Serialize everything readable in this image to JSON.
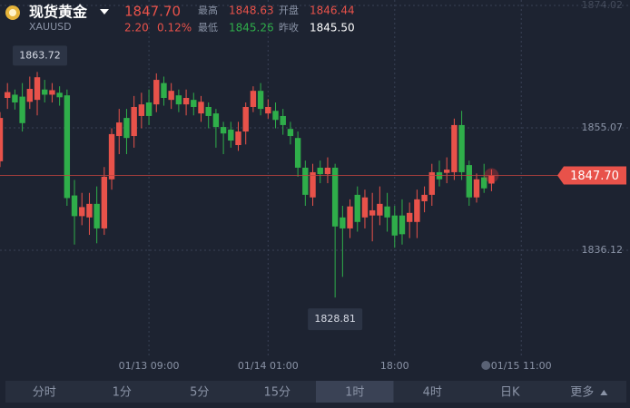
{
  "header": {
    "title": "现货黄金",
    "symbol": "XAUUSD",
    "price": "1847.70",
    "change": "2.20",
    "change_pct": "0.12%",
    "stats": [
      {
        "label": "最高",
        "value": "1848.63"
      },
      {
        "label": "开盘",
        "value": "1846.44"
      },
      {
        "label": "最低",
        "value": "1845.26"
      },
      {
        "label": "昨收",
        "value": "1845.50"
      }
    ]
  },
  "chart_data": {
    "type": "candlestick",
    "up_color": "#e8524a",
    "down_color": "#2fae4a",
    "open": [
      1849.9,
      1859.7,
      1860.2,
      1859.9,
      1859.1,
      1859.4,
      1861.0,
      1860.2,
      1860.5,
      1860.1,
      1844.6,
      1841.4,
      1841.2,
      1843.3,
      1839.5,
      1847.1,
      1853.8,
      1856.6,
      1853.8,
      1856.9,
      1859.0,
      1858.7,
      1862.0,
      1859.4,
      1860.1,
      1858.7,
      1859.4,
      1857.3,
      1858.3,
      1857.3,
      1855.2,
      1854.8,
      1852.4,
      1854.5,
      1858.3,
      1860.8,
      1857.3,
      1857.7,
      1856.9,
      1854.9,
      1853.5,
      1848.9,
      1844.3,
      1848.9,
      1847.9,
      1848.9,
      1841.2,
      1839.5,
      1844.7,
      1841.2,
      1841.5,
      1841.5,
      1842.9,
      1841.5,
      1841.5,
      1840.5,
      1840.5,
      1843.7,
      1844.7,
      1848.2,
      1848.1,
      1848.2,
      1855.5,
      1849.3,
      1844.3,
      1847.4,
      1846.44
    ],
    "high": [
      1857.5,
      1862.0,
      1861.0,
      1862.0,
      1863.0,
      1863.72,
      1862.5,
      1862.0,
      1861.5,
      1861.0,
      1847.0,
      1845.0,
      1845.0,
      1846.0,
      1849.0,
      1855.0,
      1858.0,
      1858.0,
      1860.0,
      1860.5,
      1861.0,
      1863.5,
      1863.0,
      1862.0,
      1861.0,
      1861.0,
      1860.5,
      1860.0,
      1859.0,
      1858.0,
      1856.0,
      1856.0,
      1856.0,
      1859.0,
      1861.5,
      1862.0,
      1859.5,
      1859.0,
      1858.0,
      1856.0,
      1854.5,
      1850.0,
      1849.5,
      1850.0,
      1850.5,
      1849.5,
      1843.0,
      1844.0,
      1846.0,
      1845.5,
      1845.0,
      1846.0,
      1845.0,
      1843.0,
      1844.0,
      1843.5,
      1845.5,
      1846.0,
      1849.5,
      1850.0,
      1850.5,
      1856.5,
      1857.7,
      1850.0,
      1848.0,
      1849.5,
      1848.63
    ],
    "low": [
      1849.0,
      1858.0,
      1857.9,
      1854.5,
      1858.0,
      1857.0,
      1859.0,
      1859.0,
      1858.5,
      1843.0,
      1837.0,
      1840.0,
      1838.5,
      1837.2,
      1838.5,
      1845.5,
      1851.0,
      1851.0,
      1852.0,
      1855.0,
      1855.5,
      1857.5,
      1858.5,
      1858.0,
      1857.5,
      1857.0,
      1857.0,
      1856.0,
      1855.0,
      1852.0,
      1851.0,
      1852.0,
      1851.5,
      1852.5,
      1857.5,
      1857.0,
      1856.5,
      1855.0,
      1854.0,
      1852.5,
      1847.5,
      1843.0,
      1843.0,
      1846.5,
      1846.5,
      1828.81,
      1832.0,
      1838.0,
      1839.0,
      1839.5,
      1837.5,
      1840.0,
      1839.0,
      1836.5,
      1837.0,
      1838.0,
      1838.0,
      1842.0,
      1843.0,
      1846.0,
      1846.5,
      1847.0,
      1847.0,
      1843.0,
      1843.5,
      1845.0,
      1845.26
    ],
    "close": [
      1856.6,
      1860.6,
      1859.0,
      1855.8,
      1861.1,
      1862.9,
      1860.2,
      1860.9,
      1859.8,
      1844.2,
      1841.4,
      1842.8,
      1843.3,
      1839.5,
      1847.5,
      1854.1,
      1855.9,
      1853.5,
      1858.3,
      1858.7,
      1856.9,
      1862.5,
      1859.7,
      1860.8,
      1858.7,
      1859.7,
      1858.3,
      1859.1,
      1856.9,
      1855.2,
      1854.2,
      1853.1,
      1854.5,
      1858.3,
      1860.8,
      1858.0,
      1858.3,
      1856.3,
      1855.5,
      1853.8,
      1848.9,
      1844.7,
      1848.2,
      1847.9,
      1848.9,
      1839.8,
      1839.5,
      1842.9,
      1840.5,
      1844.3,
      1842.3,
      1843.3,
      1841.2,
      1838.4,
      1838.6,
      1841.9,
      1844.0,
      1844.7,
      1848.2,
      1847.1,
      1848.6,
      1855.5,
      1848.2,
      1844.3,
      1847.1,
      1845.7,
      1847.7
    ],
    "ylim": [
      1820.12,
      1874.86
    ],
    "yticks": [
      1874.02,
      1855.07,
      1836.12
    ],
    "xlim": [
      0,
      84.6
    ],
    "xticks": [
      {
        "value": 20,
        "label": "01/13 09:00"
      },
      {
        "value": 36,
        "label": "01/14 01:00"
      },
      {
        "value": 53,
        "label": "18:00"
      },
      {
        "value": 70,
        "label": "01/15 11:00"
      }
    ],
    "max_marker": 1863.72,
    "min_marker": 1828.81,
    "price_line": {
      "value": 1847.7,
      "label": "1847.70"
    }
  },
  "tabs": [
    "分时",
    "1分",
    "5分",
    "15分",
    "1时",
    "4时",
    "日K",
    "更多"
  ],
  "active_tab": 4
}
